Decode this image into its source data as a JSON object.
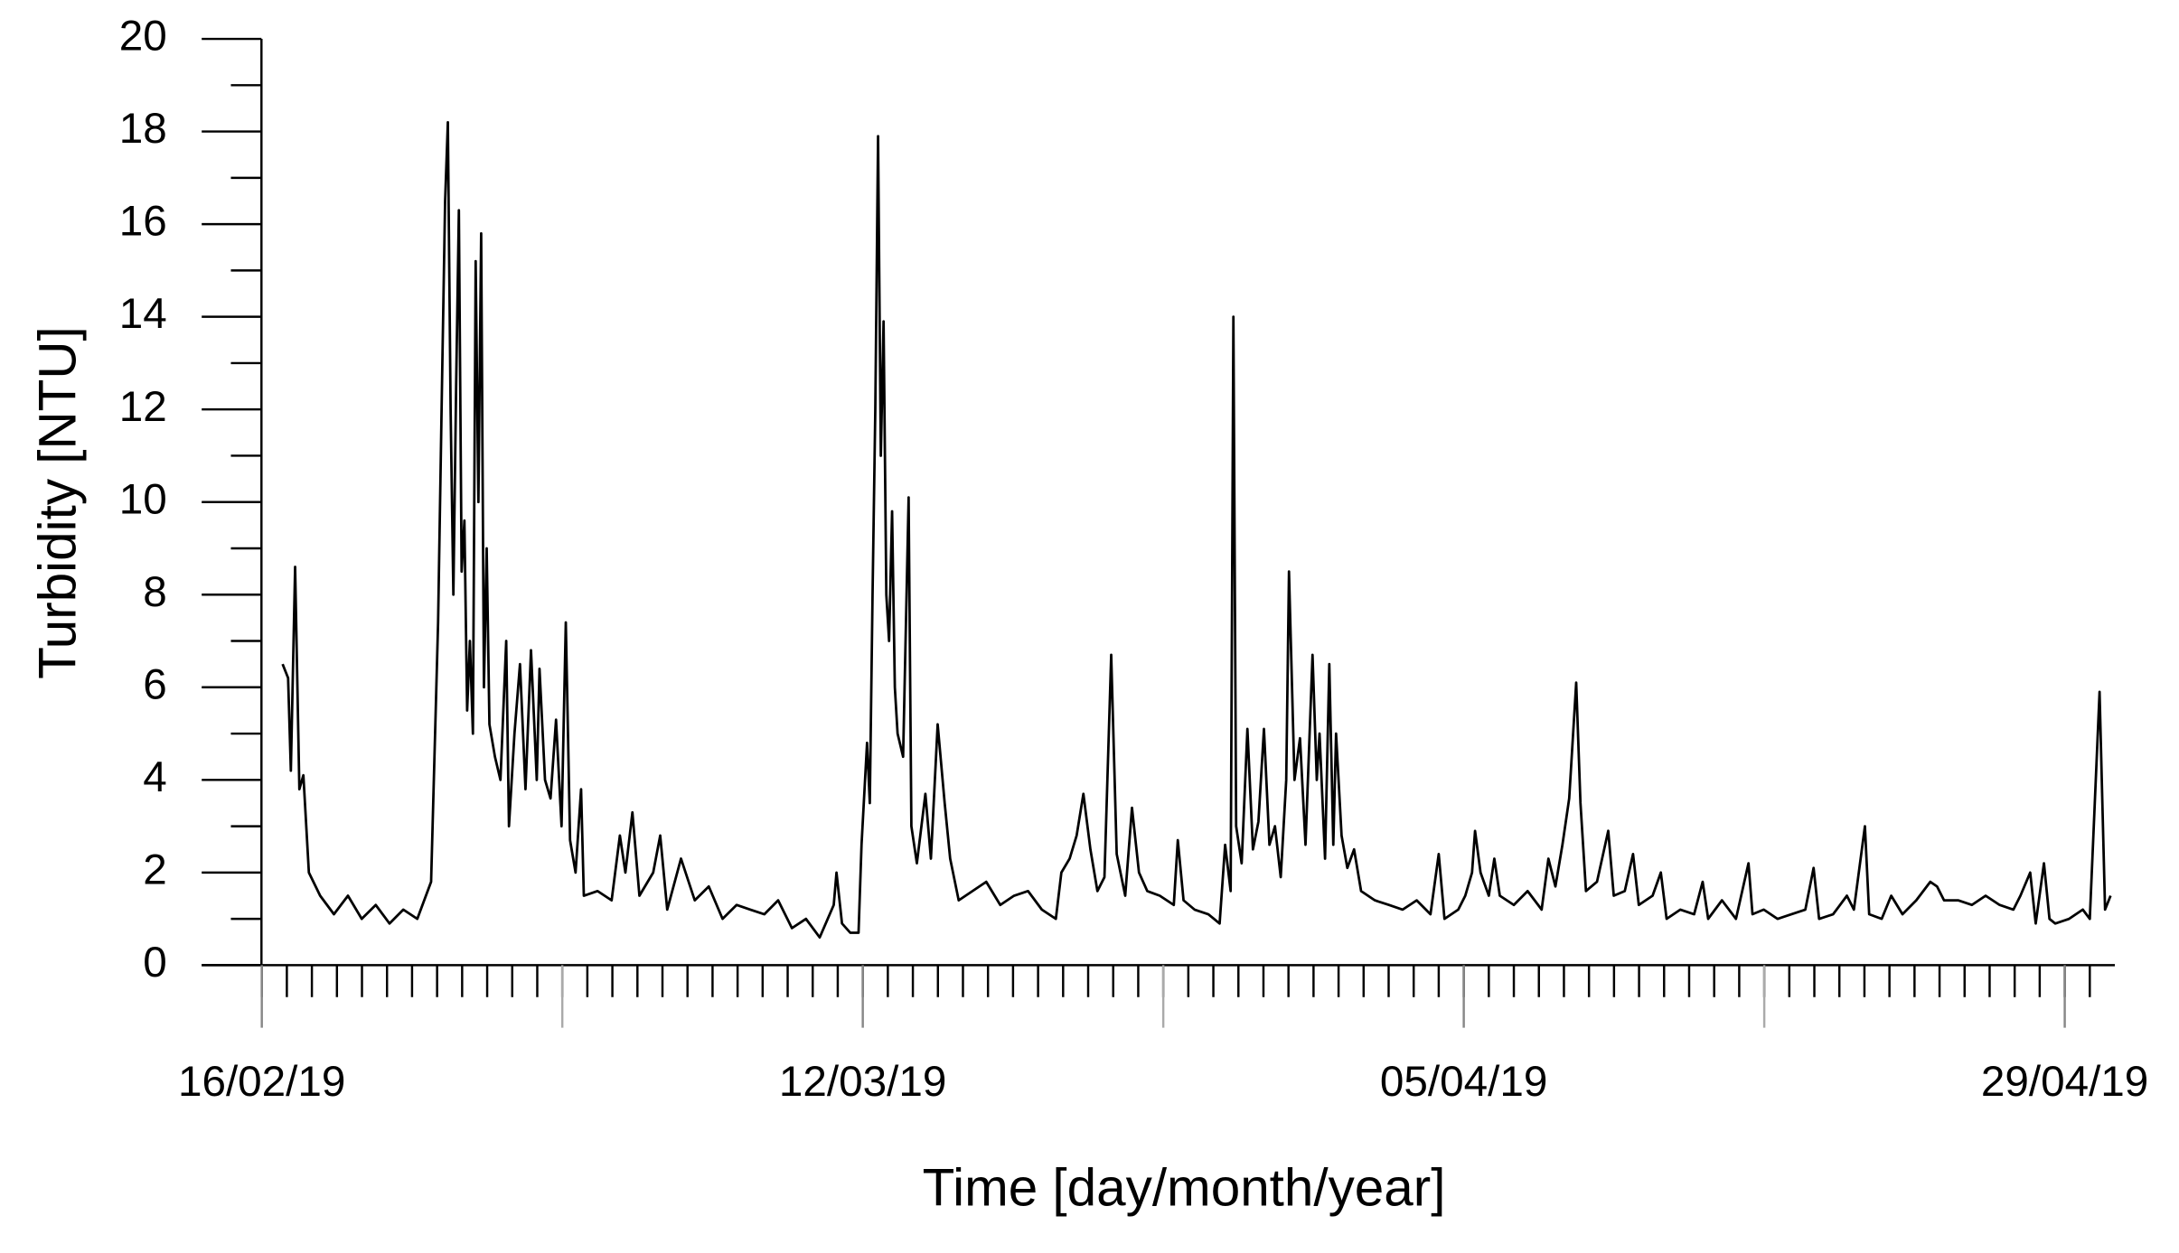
{
  "chart_data": {
    "type": "line",
    "x_label": "Time [day/month/year]",
    "y_label": "Turbidity [NTU]",
    "color": "#000000",
    "x": [
      0.83,
      1.05,
      1.16,
      1.33,
      1.5,
      1.66,
      1.88,
      2.33,
      2.88,
      3.44,
      3.99,
      4.55,
      5.1,
      5.65,
      6.21,
      6.76,
      7.04,
      7.21,
      7.32,
      7.43,
      7.54,
      7.65,
      7.76,
      7.87,
      7.98,
      8.09,
      8.2,
      8.31,
      8.43,
      8.54,
      8.65,
      8.76,
      8.87,
      8.98,
      9.09,
      9.31,
      9.53,
      9.76,
      9.87,
      10.09,
      10.31,
      10.53,
      10.75,
      10.98,
      11.09,
      11.31,
      11.53,
      11.75,
      11.97,
      12.14,
      12.31,
      12.53,
      12.75,
      12.86,
      13.41,
      13.97,
      14.3,
      14.52,
      14.8,
      15.08,
      15.63,
      15.91,
      16.19,
      16.74,
      17.29,
      17.85,
      18.4,
      18.96,
      19.51,
      20.07,
      20.62,
      21.17,
      21.73,
      22.28,
      22.84,
      22.95,
      23.17,
      23.5,
      23.83,
      23.95,
      24.17,
      24.28,
      24.39,
      24.5,
      24.61,
      24.72,
      24.83,
      24.94,
      25.05,
      25.17,
      25.28,
      25.39,
      25.61,
      25.83,
      25.94,
      26.16,
      26.5,
      26.72,
      26.99,
      27.27,
      27.49,
      27.83,
      28.38,
      28.93,
      29.49,
      30.04,
      30.6,
      31.15,
      31.71,
      31.93,
      32.26,
      32.54,
      32.81,
      33.09,
      33.37,
      33.65,
      33.92,
      34.14,
      34.48,
      34.75,
      35.03,
      35.36,
      35.86,
      36.14,
      36.42,
      36.58,
      36.81,
      37.25,
      37.8,
      38.25,
      38.47,
      38.69,
      38.8,
      38.91,
      39.13,
      39.36,
      39.58,
      39.8,
      40.02,
      40.24,
      40.46,
      40.69,
      40.91,
      41.02,
      41.24,
      41.46,
      41.68,
      41.96,
      42.13,
      42.24,
      42.46,
      42.63,
      42.79,
      42.9,
      43.12,
      43.35,
      43.62,
      43.9,
      44.45,
      45.01,
      45.56,
      46.12,
      46.67,
      47.0,
      47.23,
      47.78,
      48.06,
      48.33,
      48.45,
      48.67,
      49.0,
      49.22,
      49.44,
      50.0,
      50.55,
      51.11,
      51.38,
      51.66,
      51.94,
      52.21,
      52.49,
      52.66,
      52.88,
      53.32,
      53.77,
      53.99,
      54.43,
      54.76,
      54.99,
      55.54,
      55.87,
      56.1,
      56.65,
      57.2,
      57.54,
      57.76,
      58.31,
      58.87,
      59.37,
      59.53,
      59.98,
      60.53,
      61.08,
      61.64,
      61.97,
      62.19,
      62.75,
      63.3,
      63.58,
      64.02,
      64.19,
      64.69,
      65.07,
      65.52,
      66.07,
      66.63,
      66.9,
      67.18,
      67.74,
      68.29,
      68.84,
      69.4,
      69.95,
      70.23,
      70.62,
      70.84,
      71.17,
      71.39,
      71.62,
      72.17,
      72.72,
      73.0,
      73.39,
      73.61,
      73.83
    ],
    "values": [
      6.5,
      6.2,
      4.2,
      8.6,
      3.8,
      4.1,
      2.0,
      1.5,
      1.1,
      1.5,
      1.0,
      1.3,
      0.9,
      1.2,
      1.0,
      1.8,
      7.4,
      13,
      16.5,
      18.2,
      12,
      8,
      12.5,
      16.3,
      8.5,
      9.6,
      5.5,
      7,
      5,
      15.2,
      10,
      15.8,
      6,
      9,
      5.2,
      4.5,
      4,
      7,
      3,
      5,
      6.5,
      3.8,
      6.8,
      4,
      6.4,
      4,
      3.6,
      5.3,
      3,
      7.4,
      2.7,
      2,
      3.8,
      1.5,
      1.6,
      1.4,
      2.8,
      2,
      3.3,
      1.5,
      2,
      2.8,
      1.2,
      2.3,
      1.4,
      1.7,
      1.0,
      1.3,
      1.2,
      1.1,
      1.4,
      0.8,
      1.0,
      0.6,
      1.3,
      2.0,
      0.9,
      0.7,
      0.7,
      2.6,
      4.8,
      3.5,
      8,
      12,
      17.9,
      11,
      13.9,
      8,
      7,
      9.8,
      6,
      5,
      4.5,
      10.1,
      3,
      2.2,
      3.7,
      2.3,
      5.2,
      3.5,
      2.3,
      1.4,
      1.6,
      1.8,
      1.3,
      1.5,
      1.6,
      1.2,
      1.0,
      2,
      2.3,
      2.8,
      3.7,
      2.5,
      1.6,
      1.9,
      6.7,
      2.4,
      1.5,
      3.4,
      2,
      1.6,
      1.5,
      1.4,
      1.3,
      2.7,
      1.4,
      1.2,
      1.1,
      0.9,
      2.6,
      1.6,
      14.0,
      3,
      2.2,
      5.1,
      2.5,
      3.1,
      5.1,
      2.6,
      3,
      1.9,
      4,
      8.5,
      4,
      4.9,
      2.6,
      6.7,
      4,
      5,
      2.3,
      6.5,
      2.6,
      5,
      2.8,
      2.1,
      2.5,
      1.6,
      1.4,
      1.3,
      1.2,
      1.4,
      1.1,
      2.4,
      1.0,
      1.2,
      1.5,
      2.0,
      2.9,
      2.0,
      1.5,
      2.3,
      1.5,
      1.3,
      1.6,
      1.2,
      2.3,
      1.7,
      2.6,
      3.6,
      6.1,
      3.5,
      1.6,
      1.8,
      2.9,
      1.5,
      1.6,
      2.4,
      1.3,
      1.5,
      2.0,
      1.0,
      1.2,
      1.1,
      1.8,
      1.0,
      1.4,
      1.0,
      2.2,
      1.1,
      1.2,
      1.0,
      1.1,
      1.2,
      2.1,
      1.0,
      1.1,
      1.5,
      1.2,
      3.0,
      1.1,
      1.0,
      1.5,
      1.1,
      1.4,
      1.8,
      1.7,
      1.4,
      1.4,
      1.3,
      1.5,
      1.3,
      1.2,
      1.5,
      2.0,
      0.9,
      2.2,
      1.0,
      0.9,
      1.0,
      1.2,
      1.0,
      5.9,
      1.2,
      1.5
    ],
    "xlim": [
      -2.4,
      74
    ],
    "xticks": [
      {
        "value": 0,
        "label": "16/02/19"
      },
      {
        "value": 24,
        "label": "12/03/19"
      },
      {
        "value": 48,
        "label": "05/04/19"
      },
      {
        "value": 72,
        "label": "29/04/19"
      }
    ],
    "xmidticks": [
      12,
      36,
      60
    ],
    "xminorticks": [
      0,
      1,
      2,
      3,
      4,
      5,
      6,
      7,
      8,
      9,
      10,
      11,
      12,
      13,
      14,
      15,
      16,
      17,
      18,
      19,
      20,
      21,
      22,
      23,
      24,
      25,
      26,
      27,
      28,
      29,
      30,
      31,
      32,
      33,
      34,
      35,
      36,
      37,
      38,
      39,
      40,
      41,
      42,
      43,
      44,
      45,
      46,
      47,
      48,
      49,
      50,
      51,
      52,
      53,
      54,
      55,
      56,
      57,
      58,
      59,
      60,
      61,
      62,
      63,
      64,
      65,
      66,
      67,
      68,
      69,
      70,
      71,
      72,
      73
    ],
    "ylim": [
      0,
      20
    ],
    "yticks": [
      0,
      2,
      4,
      6,
      8,
      10,
      12,
      14,
      16,
      18,
      20
    ],
    "yminorticks": [
      1,
      3,
      5,
      7,
      9,
      11,
      13,
      15,
      17,
      19
    ]
  }
}
